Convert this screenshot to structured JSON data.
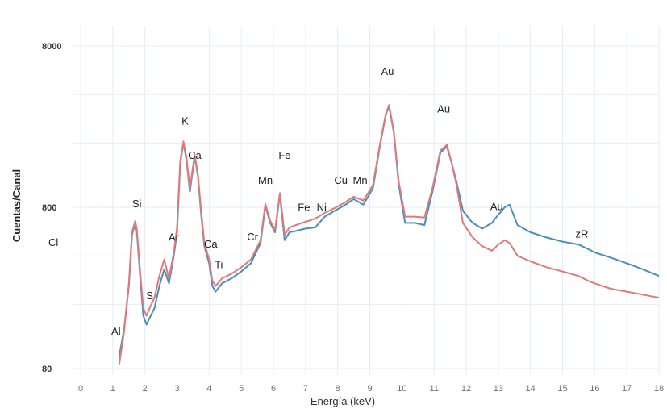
{
  "chart_data": {
    "type": "line",
    "title": "",
    "xlabel": "Energía (keV)",
    "ylabel": "Cuentas/Canal",
    "xlim": [
      0,
      18
    ],
    "ylim": [
      80,
      8000
    ],
    "y_scale": "log",
    "grid": true,
    "x_ticks": [
      "0",
      "1",
      "2",
      "3",
      "4",
      "5",
      "6",
      "7",
      "8",
      "9",
      "10",
      "11",
      "12",
      "13",
      "14",
      "15",
      "16",
      "17",
      "18"
    ],
    "y_ticks": [
      {
        "label": "8000",
        "value": 8000
      },
      {
        "label": "800",
        "value": 800
      },
      {
        "label": "80",
        "value": 80
      }
    ],
    "colors": {
      "series_blue": "#4a8fb8",
      "series_red": "#e07a7a"
    },
    "series": [
      {
        "color": "#4a8fb8",
        "x": [
          1.2,
          1.35,
          1.5,
          1.6,
          1.7,
          1.75,
          1.85,
          1.95,
          2.05,
          2.15,
          2.3,
          2.45,
          2.6,
          2.75,
          2.9,
          3.0,
          3.1,
          3.2,
          3.3,
          3.4,
          3.55,
          3.65,
          3.75,
          3.85,
          4.0,
          4.1,
          4.2,
          4.4,
          4.7,
          5.0,
          5.3,
          5.6,
          5.75,
          5.9,
          6.05,
          6.2,
          6.35,
          6.5,
          6.7,
          7.0,
          7.3,
          7.6,
          7.9,
          8.2,
          8.5,
          8.8,
          9.1,
          9.3,
          9.5,
          9.6,
          9.75,
          9.9,
          10.1,
          10.4,
          10.7,
          10.95,
          11.2,
          11.4,
          11.55,
          11.7,
          11.9,
          12.2,
          12.5,
          12.8,
          13.0,
          13.2,
          13.35,
          13.6,
          14.0,
          14.5,
          15.0,
          15.5,
          15.8,
          16.0,
          16.5,
          17.0,
          17.5,
          18.0
        ],
        "y": [
          95,
          140,
          260,
          540,
          640,
          560,
          300,
          170,
          150,
          165,
          190,
          260,
          330,
          270,
          400,
          560,
          1500,
          2000,
          1550,
          1000,
          1650,
          1250,
          720,
          460,
          360,
          260,
          240,
          270,
          290,
          320,
          360,
          480,
          820,
          640,
          560,
          960,
          500,
          560,
          570,
          590,
          600,
          700,
          760,
          820,
          900,
          830,
          1050,
          1850,
          3000,
          3400,
          2300,
          1100,
          640,
          640,
          620,
          1000,
          1750,
          1900,
          1500,
          1150,
          760,
          640,
          590,
          640,
          720,
          800,
          830,
          620,
          560,
          520,
          490,
          470,
          440,
          420,
          390,
          360,
          330,
          300
        ]
      },
      {
        "color": "#e07a7a",
        "x": [
          1.2,
          1.35,
          1.5,
          1.6,
          1.7,
          1.75,
          1.85,
          1.95,
          2.05,
          2.15,
          2.3,
          2.45,
          2.6,
          2.75,
          2.9,
          3.0,
          3.1,
          3.2,
          3.3,
          3.4,
          3.55,
          3.65,
          3.75,
          3.85,
          4.0,
          4.1,
          4.2,
          4.4,
          4.7,
          5.0,
          5.3,
          5.6,
          5.75,
          5.9,
          6.05,
          6.2,
          6.35,
          6.5,
          6.7,
          7.0,
          7.3,
          7.6,
          7.9,
          8.2,
          8.5,
          8.8,
          9.1,
          9.3,
          9.5,
          9.6,
          9.75,
          9.9,
          10.1,
          10.4,
          10.7,
          10.95,
          11.2,
          11.4,
          11.55,
          11.7,
          11.9,
          12.2,
          12.5,
          12.8,
          13.0,
          13.2,
          13.35,
          13.6,
          14.0,
          14.5,
          15.0,
          15.5,
          15.8,
          16.0,
          16.5,
          17.0,
          17.5,
          18.0
        ],
        "y": [
          85,
          135,
          270,
          560,
          660,
          580,
          320,
          190,
          170,
          190,
          220,
          300,
          380,
          290,
          420,
          600,
          1550,
          2050,
          1600,
          1050,
          1700,
          1280,
          760,
          480,
          380,
          280,
          260,
          290,
          310,
          340,
          380,
          500,
          840,
          660,
          580,
          980,
          540,
          600,
          620,
          650,
          680,
          740,
          790,
          850,
          930,
          880,
          1100,
          1900,
          3050,
          3450,
          2350,
          1150,
          700,
          700,
          690,
          1050,
          1800,
          1950,
          1500,
          1100,
          640,
          520,
          460,
          430,
          470,
          500,
          480,
          400,
          370,
          340,
          320,
          300,
          280,
          270,
          250,
          240,
          230,
          220
        ]
      }
    ],
    "annotations": [
      {
        "text": "Al",
        "x": 1.1,
        "y": 130
      },
      {
        "text": "Si",
        "x": 1.75,
        "y": 800
      },
      {
        "text": "S",
        "x": 2.15,
        "y": 215
      },
      {
        "text": "Ar",
        "x": 2.9,
        "y": 495
      },
      {
        "text": "Cl",
        "x": -0.85,
        "y": 460
      },
      {
        "text": "K",
        "x": 3.25,
        "y": 2600
      },
      {
        "text": "Ca",
        "x": 3.55,
        "y": 1600
      },
      {
        "text": "Ca",
        "x": 4.05,
        "y": 450
      },
      {
        "text": "Ti",
        "x": 4.3,
        "y": 335
      },
      {
        "text": "Cr",
        "x": 5.35,
        "y": 500
      },
      {
        "text": "Mn",
        "x": 5.75,
        "y": 1120
      },
      {
        "text": "Fe",
        "x": 6.35,
        "y": 1600
      },
      {
        "text": "Fe",
        "x": 6.95,
        "y": 760
      },
      {
        "text": "Ni",
        "x": 7.5,
        "y": 760
      },
      {
        "text": "Cu",
        "x": 8.1,
        "y": 1120
      },
      {
        "text": "Mn",
        "x": 8.7,
        "y": 1120
      },
      {
        "text": "Au",
        "x": 9.55,
        "y": 5300
      },
      {
        "text": "Au",
        "x": 11.3,
        "y": 3100
      },
      {
        "text": "Au",
        "x": 12.95,
        "y": 770
      },
      {
        "text": "zR",
        "x": 15.6,
        "y": 520
      }
    ]
  }
}
